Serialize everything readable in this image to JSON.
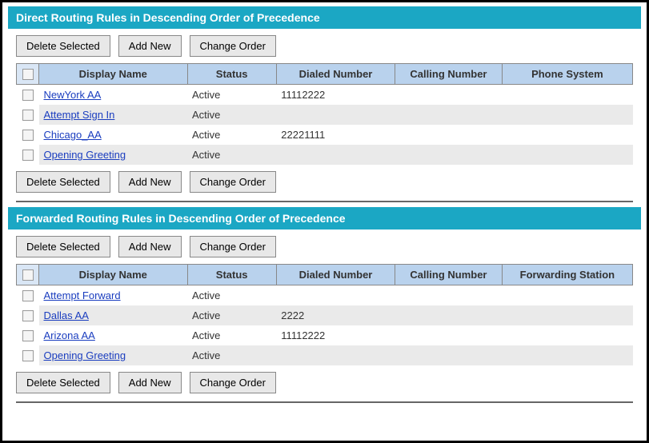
{
  "buttons": {
    "delete": "Delete Selected",
    "add": "Add New",
    "change": "Change Order"
  },
  "direct": {
    "title": "Direct Routing Rules in Descending Order of Precedence",
    "columns": [
      "Display Name",
      "Status",
      "Dialed Number",
      "Calling Number",
      "Phone System"
    ],
    "rows": [
      {
        "name": "NewYork AA",
        "status": "Active",
        "dialed": "11112222",
        "calling": "",
        "last": ""
      },
      {
        "name": "Attempt Sign In",
        "status": "Active",
        "dialed": "",
        "calling": "",
        "last": ""
      },
      {
        "name": "Chicago_AA",
        "status": "Active",
        "dialed": "22221111",
        "calling": "",
        "last": ""
      },
      {
        "name": "Opening Greeting",
        "status": "Active",
        "dialed": "",
        "calling": "",
        "last": ""
      }
    ]
  },
  "forwarded": {
    "title": "Forwarded Routing Rules in Descending Order of Precedence",
    "columns": [
      "Display Name",
      "Status",
      "Dialed Number",
      "Calling Number",
      "Forwarding Station"
    ],
    "rows": [
      {
        "name": "Attempt Forward",
        "status": "Active",
        "dialed": "",
        "calling": "",
        "last": ""
      },
      {
        "name": "Dallas AA",
        "status": "Active",
        "dialed": "2222",
        "calling": "",
        "last": ""
      },
      {
        "name": "Arizona AA",
        "status": "Active",
        "dialed": "11112222",
        "calling": "",
        "last": ""
      },
      {
        "name": "Opening Greeting",
        "status": "Active",
        "dialed": "",
        "calling": "",
        "last": ""
      }
    ]
  }
}
